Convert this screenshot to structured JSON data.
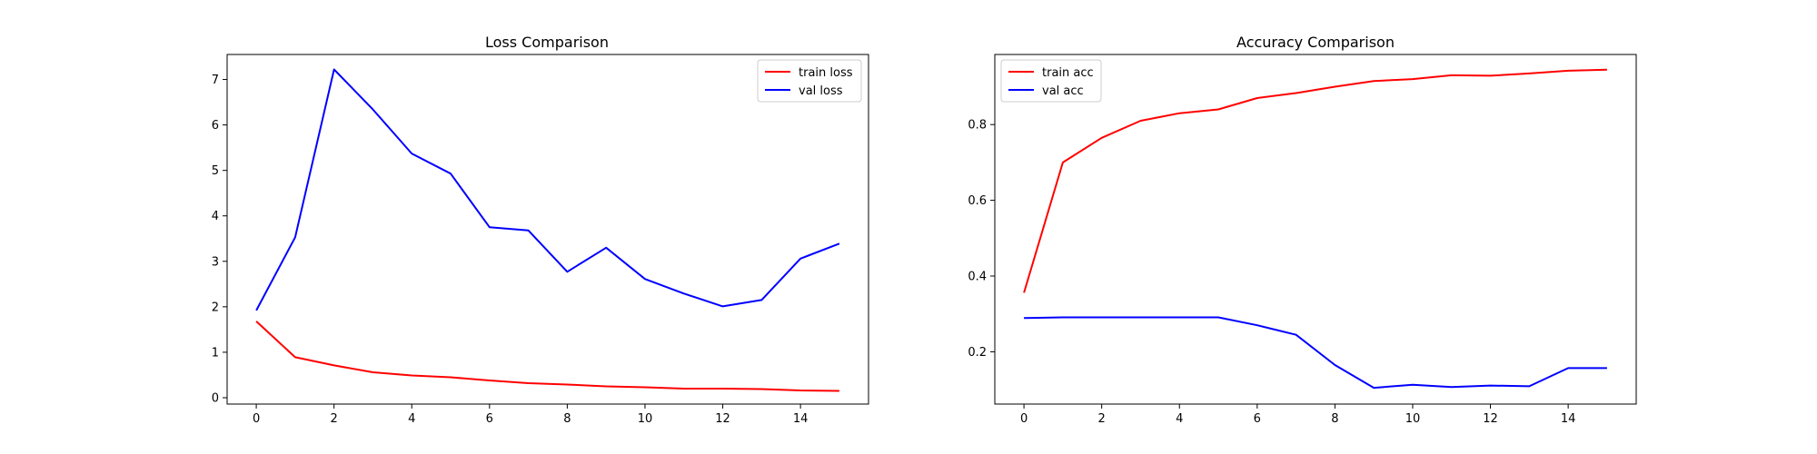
{
  "colors": {
    "train": "#ff0000",
    "val": "#0000ff"
  },
  "chart_data": [
    {
      "type": "line",
      "title": "Loss Comparison",
      "xlabel": "",
      "ylabel": "",
      "x": [
        0,
        1,
        2,
        3,
        4,
        5,
        6,
        7,
        8,
        9,
        10,
        11,
        12,
        13,
        14,
        15
      ],
      "xlim": [
        -0.75,
        15.75
      ],
      "ylim": [
        -0.14,
        7.55
      ],
      "xticks": [
        0,
        2,
        4,
        6,
        8,
        10,
        12,
        14
      ],
      "yticks": [
        0,
        1,
        2,
        3,
        4,
        5,
        6,
        7
      ],
      "legend_position": "top-right",
      "series": [
        {
          "name": "train loss",
          "color": "#ff0000",
          "values": [
            1.68,
            0.89,
            0.71,
            0.56,
            0.49,
            0.45,
            0.38,
            0.32,
            0.29,
            0.25,
            0.23,
            0.2,
            0.2,
            0.19,
            0.16,
            0.15
          ]
        },
        {
          "name": "val loss",
          "color": "#0000ff",
          "values": [
            1.92,
            3.53,
            7.22,
            6.34,
            5.37,
            4.93,
            3.75,
            3.68,
            2.77,
            3.3,
            2.61,
            2.29,
            2.01,
            2.15,
            3.06,
            3.39
          ]
        }
      ]
    },
    {
      "type": "line",
      "title": "Accuracy Comparison",
      "xlabel": "",
      "ylabel": "",
      "x": [
        0,
        1,
        2,
        3,
        4,
        5,
        6,
        7,
        8,
        9,
        10,
        11,
        12,
        13,
        14,
        15
      ],
      "xlim": [
        -0.75,
        15.75
      ],
      "ylim": [
        0.062,
        0.985
      ],
      "xticks": [
        0,
        2,
        4,
        6,
        8,
        10,
        12,
        14
      ],
      "yticks": [
        0.2,
        0.4,
        0.6,
        0.8
      ],
      "legend_position": "top-left",
      "series": [
        {
          "name": "train acc",
          "color": "#ff0000",
          "values": [
            0.356,
            0.7,
            0.765,
            0.81,
            0.83,
            0.84,
            0.87,
            0.883,
            0.9,
            0.915,
            0.92,
            0.93,
            0.929,
            0.935,
            0.942,
            0.945
          ]
        },
        {
          "name": "val acc",
          "color": "#0000ff",
          "values": [
            0.289,
            0.291,
            0.291,
            0.291,
            0.291,
            0.291,
            0.27,
            0.245,
            0.165,
            0.105,
            0.113,
            0.107,
            0.111,
            0.109,
            0.157,
            0.157
          ]
        }
      ]
    }
  ]
}
